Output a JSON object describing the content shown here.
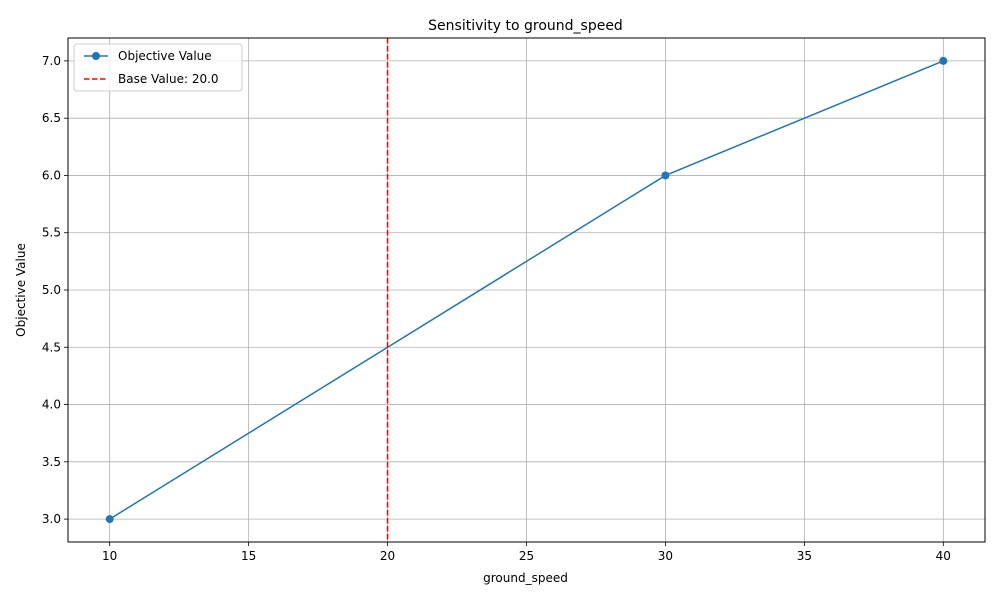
{
  "chart_data": {
    "type": "line",
    "title": "Sensitivity to ground_speed",
    "xlabel": "ground_speed",
    "ylabel": "Objective Value",
    "xlim": [
      8.5,
      41.5
    ],
    "ylim": [
      2.8,
      7.2
    ],
    "xticks": [
      10,
      15,
      20,
      25,
      30,
      35,
      40
    ],
    "yticks": [
      3.0,
      3.5,
      4.0,
      4.5,
      5.0,
      5.5,
      6.0,
      6.5,
      7.0
    ],
    "xtick_labels": [
      "10",
      "15",
      "20",
      "25",
      "30",
      "35",
      "40"
    ],
    "ytick_labels": [
      "3.0",
      "3.5",
      "4.0",
      "4.5",
      "5.0",
      "5.5",
      "6.0",
      "6.5",
      "7.0"
    ],
    "grid": true,
    "legend_position": "upper-left",
    "series": [
      {
        "name": "Objective Value",
        "color": "#1f77b4",
        "marker": "circle",
        "x": [
          10,
          30,
          40
        ],
        "y": [
          3.0,
          6.0,
          7.0
        ]
      }
    ],
    "reference_lines": [
      {
        "name": "Base Value: 20.0",
        "orientation": "vertical",
        "x": 20.0,
        "color": "#ff0000",
        "style": "dashed"
      }
    ]
  }
}
